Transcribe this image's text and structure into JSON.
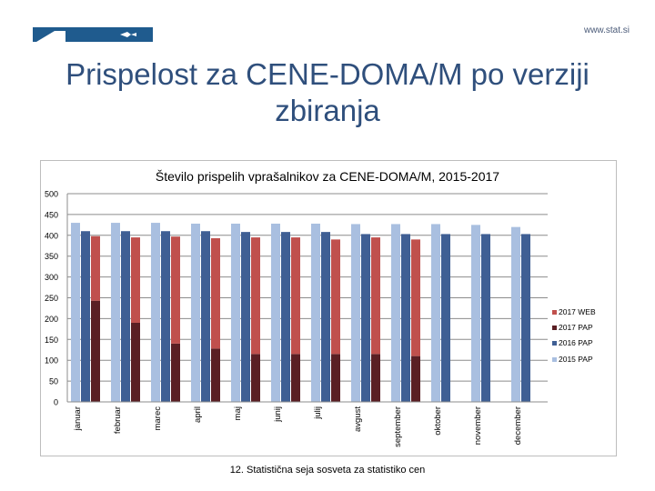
{
  "header": {
    "logo_name": "statistical-office-logo",
    "site_url": "www.stat.si",
    "title": "Prispelost za CENE-DOMA/M po verziji zbiranja"
  },
  "chart_data": {
    "type": "bar",
    "title": "Število prispelih vprašalnikov za CENE-DOMA/M, 2015-2017",
    "xlabel": "",
    "ylabel": "",
    "ylim": [
      0,
      500
    ],
    "yticks": [
      0,
      50,
      100,
      150,
      200,
      250,
      300,
      350,
      400,
      450,
      500
    ],
    "grid": true,
    "legend_position": "right",
    "stacked_2017": true,
    "categories": [
      "januar",
      "februar",
      "marec",
      "april",
      "maj",
      "junij",
      "julij",
      "avgust",
      "september",
      "oktober",
      "november",
      "december"
    ],
    "series": [
      {
        "name": "2015 PAP",
        "color": "#a9bfe0",
        "values": [
          430,
          430,
          430,
          428,
          428,
          428,
          428,
          427,
          427,
          427,
          425,
          420
        ]
      },
      {
        "name": "2016 PAP",
        "color": "#3f5f94",
        "values": [
          410,
          410,
          410,
          410,
          408,
          408,
          408,
          403,
          403,
          403,
          403,
          403
        ]
      },
      {
        "name": "2017 PAP",
        "color": "#5a1f24",
        "values": [
          243,
          190,
          140,
          128,
          115,
          115,
          115,
          115,
          110,
          null,
          null,
          null
        ]
      },
      {
        "name": "2017 WEB",
        "color": "#c0504d",
        "values": [
          155,
          205,
          257,
          265,
          280,
          280,
          275,
          280,
          280,
          null,
          null,
          null
        ]
      }
    ],
    "legend": [
      "2017 WEB",
      "2017 PAP",
      "2016 PAP",
      "2015 PAP"
    ]
  },
  "footer": {
    "text": "12. Statistična seja sosveta za statistiko cen"
  }
}
